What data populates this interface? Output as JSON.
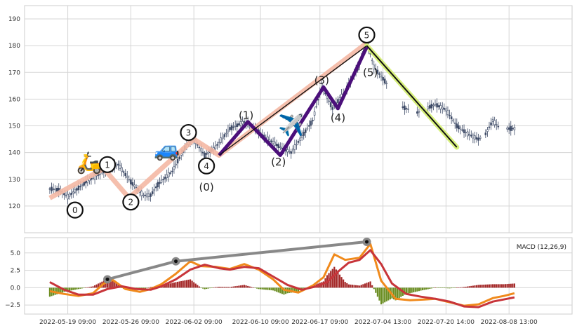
{
  "chart_data": [
    {
      "type": "candlestick",
      "title": "",
      "ylim": [
        110,
        195
      ],
      "y_ticks": [
        120,
        130,
        140,
        150,
        160,
        170,
        180,
        190
      ],
      "x_ticks": [
        "2022-05-19 09:00",
        "2022-05-26 09:00",
        "2022-06-02 09:00",
        "2022-06-10 09:00",
        "2022-06-17 09:00",
        "2022-07-04 13:00",
        "2022-07-20 14:00",
        "2022-08-08 13:00"
      ],
      "grid": true,
      "colors": {
        "up": "#3d4a66",
        "down": "#3d4a66",
        "impulse_wave": "#4b0f7a",
        "outer_wave": "#f4b8a4",
        "correction": "#d7f07c"
      },
      "price_path": [
        [
          0,
          126.5
        ],
        [
          5,
          126
        ],
        [
          10,
          123.5
        ],
        [
          20,
          129
        ],
        [
          30,
          133
        ],
        [
          38,
          135.5
        ],
        [
          45,
          129
        ],
        [
          52,
          124
        ],
        [
          56,
          124
        ],
        [
          60,
          128
        ],
        [
          68,
          133
        ],
        [
          76,
          143
        ],
        [
          80,
          145
        ],
        [
          86,
          139
        ],
        [
          92,
          142
        ],
        [
          100,
          149
        ],
        [
          108,
          151.5
        ],
        [
          114,
          149
        ],
        [
          120,
          145.5
        ],
        [
          128,
          142
        ],
        [
          134,
          140
        ],
        [
          140,
          146
        ],
        [
          146,
          152
        ],
        [
          151,
          165
        ],
        [
          157,
          156.5
        ],
        [
          164,
          163
        ],
        [
          172,
          173
        ],
        [
          176,
          182
        ],
        [
          180,
          172
        ],
        [
          188,
          165
        ],
        [
          196,
          157
        ],
        [
          204,
          155
        ],
        [
          214,
          158
        ],
        [
          220,
          156
        ],
        [
          226,
          150
        ],
        [
          232,
          147
        ],
        [
          238,
          145
        ],
        [
          242,
          147
        ],
        [
          246,
          152
        ],
        [
          250,
          149
        ],
        [
          258,
          149
        ]
      ],
      "waves": {
        "outer": [
          [
            0,
            123
          ],
          [
            30,
            134
          ],
          [
            44,
            123
          ],
          [
            80,
            145
          ],
          [
            94,
            139
          ],
          [
            176,
            181
          ]
        ],
        "impulse": [
          [
            94,
            139
          ],
          [
            110,
            151.5
          ],
          [
            128,
            139
          ],
          [
            152,
            164.5
          ],
          [
            160,
            156.5
          ],
          [
            176,
            179.5
          ]
        ],
        "thin_line": [
          [
            94,
            139
          ],
          [
            176,
            180
          ]
        ],
        "correction": [
          [
            176,
            180
          ],
          [
            226,
            142
          ]
        ]
      },
      "labels": [
        {
          "text": "0",
          "x": 14,
          "y": 118.5,
          "circled": true
        },
        {
          "text": "1",
          "x": 32,
          "y": 135.5,
          "circled": true
        },
        {
          "text": "2",
          "x": 45,
          "y": 121.5,
          "circled": true
        },
        {
          "text": "3",
          "x": 77,
          "y": 147.5,
          "circled": true
        },
        {
          "text": "4",
          "x": 87,
          "y": 135,
          "circled": true
        },
        {
          "text": "5",
          "x": 176,
          "y": 184,
          "circled": true
        },
        {
          "text": "(0)",
          "x": 87,
          "y": 127,
          "circled": false
        },
        {
          "text": "(1)",
          "x": 109,
          "y": 154,
          "circled": false
        },
        {
          "text": "(2)",
          "x": 127,
          "y": 136.5,
          "circled": false
        },
        {
          "text": "(3)",
          "x": 151,
          "y": 167,
          "circled": false
        },
        {
          "text": "(4)",
          "x": 160,
          "y": 153,
          "circled": false
        },
        {
          "text": "(5)",
          "x": 178,
          "y": 170,
          "circled": false
        }
      ],
      "emojis": [
        {
          "icon": "scooter",
          "x": 22,
          "y": 136.5
        },
        {
          "icon": "car",
          "x": 65,
          "y": 141.5
        },
        {
          "icon": "airplane",
          "x": 134,
          "y": 150.5
        }
      ]
    },
    {
      "type": "macd",
      "title": "MACD (12,26,9)",
      "ylim": [
        -3.8,
        7.2
      ],
      "y_ticks": [
        -2.5,
        0.0,
        2.5,
        5.0
      ],
      "y_tick_labels": [
        "−2.5",
        "0.0",
        "2.5",
        "5.0"
      ],
      "colors": {
        "macd": "#f08a1c",
        "signal": "#c8353a",
        "hist_up": "#a52a2a",
        "hist_down": "#6b8e23",
        "trend": "#888888"
      },
      "macd": [
        [
          0,
          -0.5
        ],
        [
          8,
          -0.9
        ],
        [
          16,
          -1.2
        ],
        [
          24,
          -0.8
        ],
        [
          30,
          0.6
        ],
        [
          35,
          1.1
        ],
        [
          42,
          -0.2
        ],
        [
          50,
          -0.6
        ],
        [
          56,
          -0.2
        ],
        [
          62,
          0.5
        ],
        [
          70,
          2.0
        ],
        [
          78,
          3.8
        ],
        [
          84,
          3.1
        ],
        [
          92,
          3.0
        ],
        [
          100,
          2.7
        ],
        [
          108,
          3.4
        ],
        [
          116,
          2.6
        ],
        [
          124,
          1.2
        ],
        [
          130,
          -0.3
        ],
        [
          138,
          -0.7
        ],
        [
          146,
          0.3
        ],
        [
          152,
          1.5
        ],
        [
          158,
          4.8
        ],
        [
          164,
          4.0
        ],
        [
          172,
          4.3
        ],
        [
          178,
          6.3
        ],
        [
          184,
          1.0
        ],
        [
          192,
          -1.6
        ],
        [
          200,
          -1.8
        ],
        [
          208,
          -1.7
        ],
        [
          214,
          -1.6
        ],
        [
          222,
          -2.1
        ],
        [
          230,
          -2.6
        ],
        [
          238,
          -2.4
        ],
        [
          246,
          -1.5
        ],
        [
          252,
          -1.2
        ],
        [
          258,
          -0.8
        ]
      ],
      "signal": [
        [
          0,
          0.8
        ],
        [
          8,
          -0.3
        ],
        [
          16,
          -1.0
        ],
        [
          24,
          -1.0
        ],
        [
          32,
          -0.2
        ],
        [
          40,
          0.2
        ],
        [
          48,
          -0.2
        ],
        [
          56,
          -0.3
        ],
        [
          62,
          0.2
        ],
        [
          70,
          1.2
        ],
        [
          78,
          2.6
        ],
        [
          86,
          3.3
        ],
        [
          94,
          2.8
        ],
        [
          100,
          2.6
        ],
        [
          108,
          3.0
        ],
        [
          116,
          2.8
        ],
        [
          124,
          1.6
        ],
        [
          132,
          0.4
        ],
        [
          140,
          -0.3
        ],
        [
          148,
          0.2
        ],
        [
          154,
          0.8
        ],
        [
          160,
          2.3
        ],
        [
          166,
          3.6
        ],
        [
          172,
          4.0
        ],
        [
          178,
          5.4
        ],
        [
          184,
          3.4
        ],
        [
          190,
          0.6
        ],
        [
          198,
          -0.9
        ],
        [
          206,
          -1.3
        ],
        [
          214,
          -1.6
        ],
        [
          222,
          -2.0
        ],
        [
          230,
          -2.7
        ],
        [
          238,
          -2.8
        ],
        [
          246,
          -2.0
        ],
        [
          252,
          -1.7
        ],
        [
          258,
          -1.4
        ]
      ],
      "trendline": [
        [
          32,
          1.2
        ],
        [
          70,
          3.8
        ],
        [
          176,
          6.6
        ]
      ]
    }
  ]
}
